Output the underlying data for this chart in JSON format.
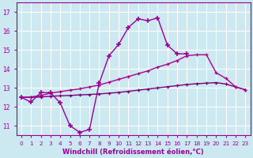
{
  "xlabel": "Windchill (Refroidissement éolien,°C)",
  "xlim": [
    -0.5,
    23.5
  ],
  "ylim": [
    10.5,
    17.5
  ],
  "yticks": [
    11,
    12,
    13,
    14,
    15,
    16,
    17
  ],
  "xtick_labels": [
    "0",
    "1",
    "2",
    "3",
    "4",
    "5",
    "6",
    "7",
    "8",
    "9",
    "10",
    "11",
    "12",
    "13",
    "14",
    "15",
    "16",
    "17",
    "18",
    "19",
    "20",
    "21",
    "22",
    "23"
  ],
  "bg_color": "#cce8f0",
  "grid_color": "#ffffff",
  "line_color1": "#990099",
  "line_color2": "#aa0099",
  "line_color3": "#880088",
  "line1_x": [
    0,
    1,
    2,
    3,
    4,
    5,
    6,
    7,
    8,
    9,
    10,
    11,
    12,
    13,
    14,
    15,
    16,
    17
  ],
  "line1_y": [
    12.5,
    12.25,
    12.75,
    12.75,
    12.2,
    11.0,
    10.65,
    10.8,
    13.25,
    14.7,
    15.3,
    16.2,
    16.65,
    16.55,
    16.7,
    15.25,
    14.8,
    14.8
  ],
  "line2_x": [
    0,
    1,
    2,
    3,
    4,
    5,
    6,
    7,
    8,
    9,
    10,
    11,
    12,
    13,
    14,
    15,
    16,
    17,
    18,
    19,
    20,
    21,
    22,
    23
  ],
  "line2_y": [
    12.5,
    12.52,
    12.6,
    12.72,
    12.8,
    12.88,
    12.95,
    13.05,
    13.15,
    13.3,
    13.45,
    13.6,
    13.75,
    13.9,
    14.1,
    14.25,
    14.45,
    14.7,
    14.75,
    14.75,
    13.8,
    13.5,
    13.05,
    12.9
  ],
  "line3_x": [
    0,
    1,
    2,
    3,
    4,
    5,
    6,
    7,
    8,
    9,
    10,
    11,
    12,
    13,
    14,
    15,
    16,
    17,
    18,
    19,
    20,
    21,
    22,
    23
  ],
  "line3_y": [
    12.5,
    12.5,
    12.52,
    12.56,
    12.58,
    12.6,
    12.63,
    12.65,
    12.68,
    12.72,
    12.76,
    12.82,
    12.88,
    12.94,
    13.0,
    13.06,
    13.12,
    13.18,
    13.22,
    13.25,
    13.28,
    13.2,
    13.05,
    12.9
  ]
}
